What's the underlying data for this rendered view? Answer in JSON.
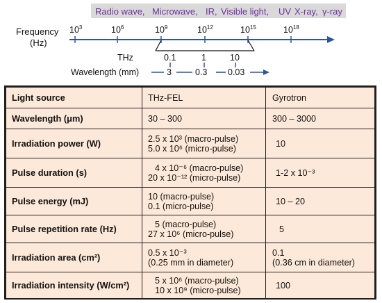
{
  "spectrum": {
    "bands": [
      {
        "text": "Radio wave,",
        "color": "#7030a0"
      },
      {
        "text": "Microwave,",
        "color": "#7030a0"
      },
      {
        "text": "IR,",
        "color": "#7030a0"
      },
      {
        "text": "Visible light,",
        "color": "#7030a0"
      },
      {
        "text": "UV",
        "color": "#7030a0"
      },
      {
        "text": "X-ray,",
        "color": "#7030a0"
      },
      {
        "text": "γ-ray",
        "color": "#7030a0"
      }
    ],
    "band_background": "#d9d9d9",
    "frequency_label_1": "Frequency",
    "frequency_label_2": "(Hz)",
    "frequency_ticks": [
      {
        "base": "10",
        "exp": "3"
      },
      {
        "base": "10",
        "exp": "6"
      },
      {
        "base": "10",
        "exp": "9"
      },
      {
        "base": "10",
        "exp": "12"
      },
      {
        "base": "10",
        "exp": "15"
      },
      {
        "base": "10",
        "exp": "18"
      }
    ],
    "thz_label": "THz",
    "thz_ticks": [
      "0.1",
      "1",
      "10"
    ],
    "wavelength_label": "Wavelength (mm)",
    "wavelength_ticks": [
      "3",
      "0.3",
      "0.03"
    ],
    "axis_color": "#2f5597"
  },
  "table": {
    "header": {
      "label": "Light source",
      "fel": "THz-FEL",
      "gyro": "Gyrotron"
    },
    "rows": [
      {
        "label": "Wavelength (μm)",
        "fel": [
          "30 – 300"
        ],
        "gyro": [
          "300 – 3000"
        ]
      },
      {
        "label": "Irradiation power (W)",
        "fel": [
          "2.5 x 10³ (macro-pulse)",
          "5.0 x 10⁶ (micro-pulse)"
        ],
        "gyro": [
          "10"
        ]
      },
      {
        "label": "Pulse duration (s)",
        "fel": [
          "4 x 10⁻⁶ (macro-pulse)",
          "20 x 10⁻¹² (micro-pulse)"
        ],
        "gyro": [
          "1-2 x 10⁻³"
        ]
      },
      {
        "label": "Pulse energy (mJ)",
        "fel": [
          "10 (macro-pulse)",
          "0.1 (micro-pulse)"
        ],
        "gyro": [
          "10 – 20"
        ]
      },
      {
        "label": "Pulse repetition rate (Hz)",
        "fel": [
          "5 (macro-pulse)",
          "27 x 10⁶ (micro-pulse)"
        ],
        "gyro": [
          "5"
        ]
      },
      {
        "label": "Irradiation area (cm²)",
        "fel": [
          "0.5 x 10⁻³",
          "(0.25 mm in diameter)"
        ],
        "gyro": [
          "0.1",
          "(0.36 cm in diameter)"
        ]
      },
      {
        "label": "Irradiation intensity (W/cm²)",
        "fel": [
          "5 x 10⁶ (macro-pulse)",
          "10 x 10⁹ (micro-pulse)"
        ],
        "gyro": [
          "100"
        ]
      }
    ],
    "background": "#fde9d9"
  }
}
